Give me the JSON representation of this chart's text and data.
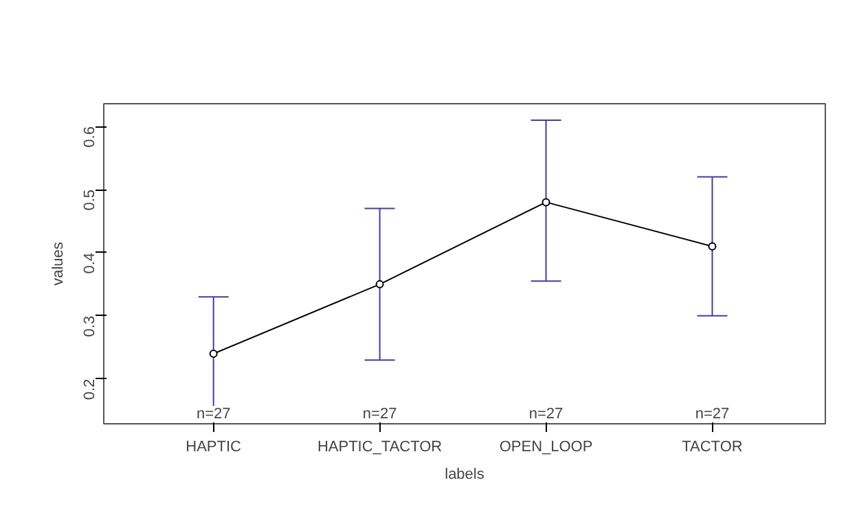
{
  "chart_data": {
    "type": "line",
    "xlabel": "labels",
    "ylabel": "values",
    "categories": [
      "HAPTIC",
      "HAPTIC_TACTOR",
      "OPEN_LOOP",
      "TACTOR"
    ],
    "series": [
      {
        "color": "#000000",
        "values": [
          0.24,
          0.35,
          0.48,
          0.41
        ],
        "errors": [
          [
            0.14,
            0.33
          ],
          [
            0.23,
            0.47
          ],
          [
            0.355,
            0.61
          ],
          [
            0.3,
            0.52
          ]
        ]
      }
    ],
    "ylim": [
      0.129,
      0.636
    ],
    "yticks": [
      0.2,
      0.3,
      0.4,
      0.5,
      0.6
    ],
    "marker": "circle",
    "grid": false,
    "annotations": [
      "n=27",
      "n=27",
      "n=27",
      "n=27"
    ]
  }
}
